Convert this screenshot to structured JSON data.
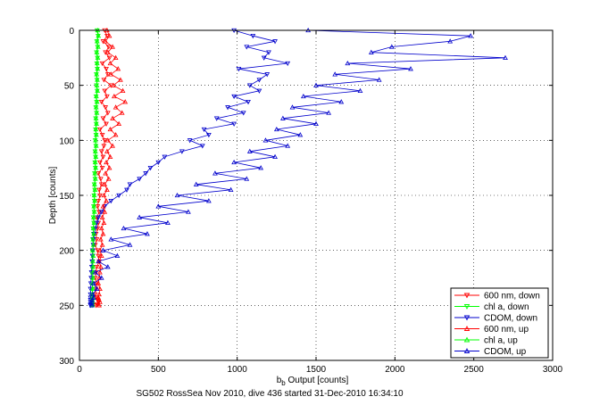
{
  "chart_data": {
    "type": "line",
    "title": "",
    "xlabel_main": "b",
    "xlabel_sub": "b",
    "xlabel_rest": " Output [counts]",
    "ylabel": "Depth [counts]",
    "caption": "SG502 RossSea Nov 2010, dive 436 started 31-Dec-2010 16:34:10",
    "xlim": [
      0,
      3000
    ],
    "ylim": [
      0,
      300
    ],
    "y_reversed": true,
    "grid": true,
    "legend_position": "bottom-right",
    "xticks": [
      "0",
      "500",
      "1000",
      "1500",
      "2000",
      "2500",
      "3000"
    ],
    "yticks": [
      "0",
      "50",
      "100",
      "150",
      "200",
      "250",
      "300"
    ],
    "series": [
      {
        "name": "600 nm, down",
        "color": "#ff0000",
        "marker": "triangle-down",
        "x": [
          160,
          175,
          150,
          185,
          165,
          190,
          145,
          170,
          180,
          155,
          200,
          160,
          175,
          140,
          165,
          180,
          150,
          170,
          130,
          145,
          160,
          155,
          140,
          150,
          130,
          145,
          120,
          135,
          140,
          125,
          130,
          120,
          115,
          125,
          110,
          120,
          115,
          105,
          110,
          100,
          115,
          120,
          125,
          110,
          105,
          100,
          110,
          105,
          100,
          110,
          115,
          120,
          110,
          105
        ],
        "y": [
          0,
          5,
          10,
          15,
          20,
          25,
          30,
          35,
          40,
          45,
          50,
          55,
          60,
          65,
          70,
          75,
          80,
          85,
          90,
          95,
          100,
          105,
          110,
          115,
          120,
          125,
          130,
          135,
          140,
          145,
          150,
          155,
          160,
          165,
          170,
          175,
          180,
          185,
          190,
          195,
          200,
          205,
          210,
          215,
          220,
          225,
          230,
          235,
          240,
          243,
          245,
          247,
          249,
          250
        ]
      },
      {
        "name": "chl a, down",
        "color": "#00ff00",
        "marker": "triangle-down",
        "x": [
          112,
          118,
          110,
          115,
          108,
          114,
          110,
          113,
          107,
          111,
          108,
          112,
          105,
          109,
          104,
          108,
          103,
          106,
          102,
          105,
          100,
          104,
          99,
          102,
          98,
          101,
          96,
          99,
          94,
          97,
          92,
          95,
          90,
          93,
          88,
          91,
          86,
          89,
          84,
          87,
          82,
          85,
          83,
          84,
          82,
          83,
          81,
          82,
          80,
          81,
          80,
          81,
          80,
          80
        ],
        "y": [
          0,
          5,
          10,
          15,
          20,
          25,
          30,
          35,
          40,
          45,
          50,
          55,
          60,
          65,
          70,
          75,
          80,
          85,
          90,
          95,
          100,
          105,
          110,
          115,
          120,
          125,
          130,
          135,
          140,
          145,
          150,
          155,
          160,
          165,
          170,
          175,
          180,
          185,
          190,
          195,
          200,
          205,
          210,
          215,
          220,
          225,
          230,
          235,
          240,
          243,
          245,
          247,
          249,
          250
        ]
      },
      {
        "name": "CDOM, down",
        "color": "#0000cc",
        "marker": "triangle-down",
        "x": [
          980,
          1100,
          1240,
          1060,
          1200,
          1170,
          1320,
          1010,
          1190,
          1140,
          1080,
          1140,
          980,
          1070,
          940,
          1040,
          870,
          980,
          790,
          820,
          700,
          780,
          650,
          540,
          500,
          450,
          420,
          380,
          320,
          300,
          250,
          200,
          160,
          140,
          120,
          110,
          100,
          95,
          90,
          88,
          85,
          82,
          80,
          78,
          76,
          74,
          72,
          70,
          70,
          70,
          70,
          70,
          70,
          70
        ],
        "y": [
          0,
          5,
          10,
          15,
          20,
          25,
          30,
          35,
          40,
          45,
          50,
          55,
          60,
          65,
          70,
          75,
          80,
          85,
          90,
          95,
          100,
          105,
          110,
          115,
          120,
          125,
          130,
          135,
          140,
          145,
          150,
          155,
          160,
          165,
          170,
          175,
          180,
          185,
          190,
          195,
          200,
          205,
          210,
          215,
          220,
          225,
          230,
          235,
          240,
          243,
          245,
          247,
          249,
          250
        ]
      },
      {
        "name": "600 nm, up",
        "color": "#ff0000",
        "marker": "triangle-up",
        "x": [
          175,
          190,
          165,
          210,
          180,
          230,
          195,
          245,
          200,
          260,
          215,
          275,
          220,
          290,
          230,
          270,
          210,
          250,
          195,
          230,
          180,
          210,
          175,
          195,
          170,
          190,
          165,
          185,
          160,
          175,
          155,
          170,
          150,
          160,
          145,
          155,
          140,
          150,
          135,
          145,
          130,
          140,
          125,
          135,
          130,
          125,
          120,
          130,
          125,
          120,
          125,
          130,
          120,
          125
        ],
        "y": [
          0,
          5,
          10,
          15,
          20,
          25,
          30,
          35,
          40,
          45,
          50,
          55,
          60,
          65,
          70,
          75,
          80,
          85,
          90,
          95,
          100,
          105,
          110,
          115,
          120,
          125,
          130,
          135,
          140,
          145,
          150,
          155,
          160,
          165,
          170,
          175,
          180,
          185,
          190,
          195,
          200,
          205,
          210,
          215,
          220,
          225,
          230,
          235,
          240,
          243,
          245,
          247,
          249,
          250
        ]
      },
      {
        "name": "chl a, up",
        "color": "#00ff00",
        "marker": "triangle-up",
        "x": [
          115,
          120,
          112,
          118,
          110,
          116,
          112,
          115,
          109,
          113,
          110,
          114,
          107,
          111,
          106,
          110,
          105,
          108,
          104,
          107,
          102,
          106,
          101,
          104,
          100,
          103,
          98,
          101,
          96,
          99,
          94,
          97,
          92,
          95,
          90,
          93,
          88,
          91,
          86,
          89,
          84,
          87,
          85,
          86,
          84,
          85,
          83,
          84,
          82,
          83,
          82,
          83,
          82,
          82
        ],
        "y": [
          0,
          5,
          10,
          15,
          20,
          25,
          30,
          35,
          40,
          45,
          50,
          55,
          60,
          65,
          70,
          75,
          80,
          85,
          90,
          95,
          100,
          105,
          110,
          115,
          120,
          125,
          130,
          135,
          140,
          145,
          150,
          155,
          160,
          165,
          170,
          175,
          180,
          185,
          190,
          195,
          200,
          205,
          210,
          215,
          220,
          225,
          230,
          235,
          240,
          243,
          245,
          247,
          249,
          250
        ]
      },
      {
        "name": "CDOM, up",
        "color": "#0000cc",
        "marker": "triangle-up",
        "x": [
          1450,
          2480,
          2350,
          1980,
          1850,
          2700,
          1700,
          2100,
          1620,
          1900,
          1500,
          1780,
          1420,
          1660,
          1350,
          1580,
          1290,
          1500,
          1250,
          1400,
          1180,
          1320,
          1080,
          1240,
          980,
          1150,
          860,
          1060,
          740,
          960,
          620,
          820,
          500,
          690,
          380,
          560,
          280,
          430,
          200,
          320,
          150,
          240,
          120,
          180,
          100,
          140,
          90,
          110,
          85,
          90,
          80,
          80,
          78,
          78
        ],
        "y": [
          0,
          5,
          10,
          15,
          20,
          25,
          30,
          35,
          40,
          45,
          50,
          55,
          60,
          65,
          70,
          75,
          80,
          85,
          90,
          95,
          100,
          105,
          110,
          115,
          120,
          125,
          130,
          135,
          140,
          145,
          150,
          155,
          160,
          165,
          170,
          175,
          180,
          185,
          190,
          195,
          200,
          205,
          210,
          215,
          220,
          225,
          230,
          235,
          240,
          243,
          245,
          247,
          249,
          250
        ]
      }
    ]
  }
}
